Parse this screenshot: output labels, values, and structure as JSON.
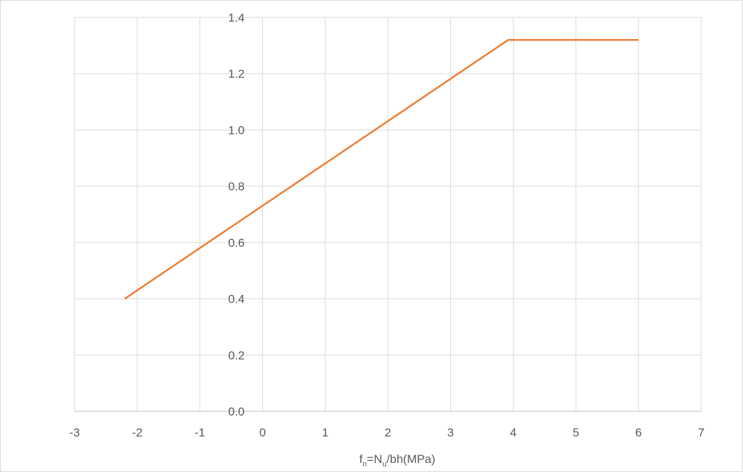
{
  "chart_data": {
    "type": "line",
    "title": "",
    "xlabel": {
      "main1": "f",
      "sub1": "n",
      "main2": "=N",
      "sub2": "u",
      "main3": "/bh(MPa)"
    },
    "ylabel": "",
    "xlim": [
      -3,
      7
    ],
    "ylim": [
      0,
      1.4
    ],
    "xticks": [
      "-3",
      "-2",
      "-1",
      "0",
      "1",
      "2",
      "3",
      "4",
      "5",
      "6",
      "7"
    ],
    "yticks": [
      "0.0",
      "0.2",
      "0.4",
      "0.6",
      "0.8",
      "1.0",
      "1.2",
      "1.4"
    ],
    "grid": true,
    "legend": "none",
    "series": [
      {
        "color": "#ed7d31",
        "points": [
          {
            "x": -2.2,
            "y": 0.4
          },
          {
            "x": 3.92,
            "y": 1.32
          },
          {
            "x": 6.0,
            "y": 1.32
          }
        ]
      }
    ]
  }
}
